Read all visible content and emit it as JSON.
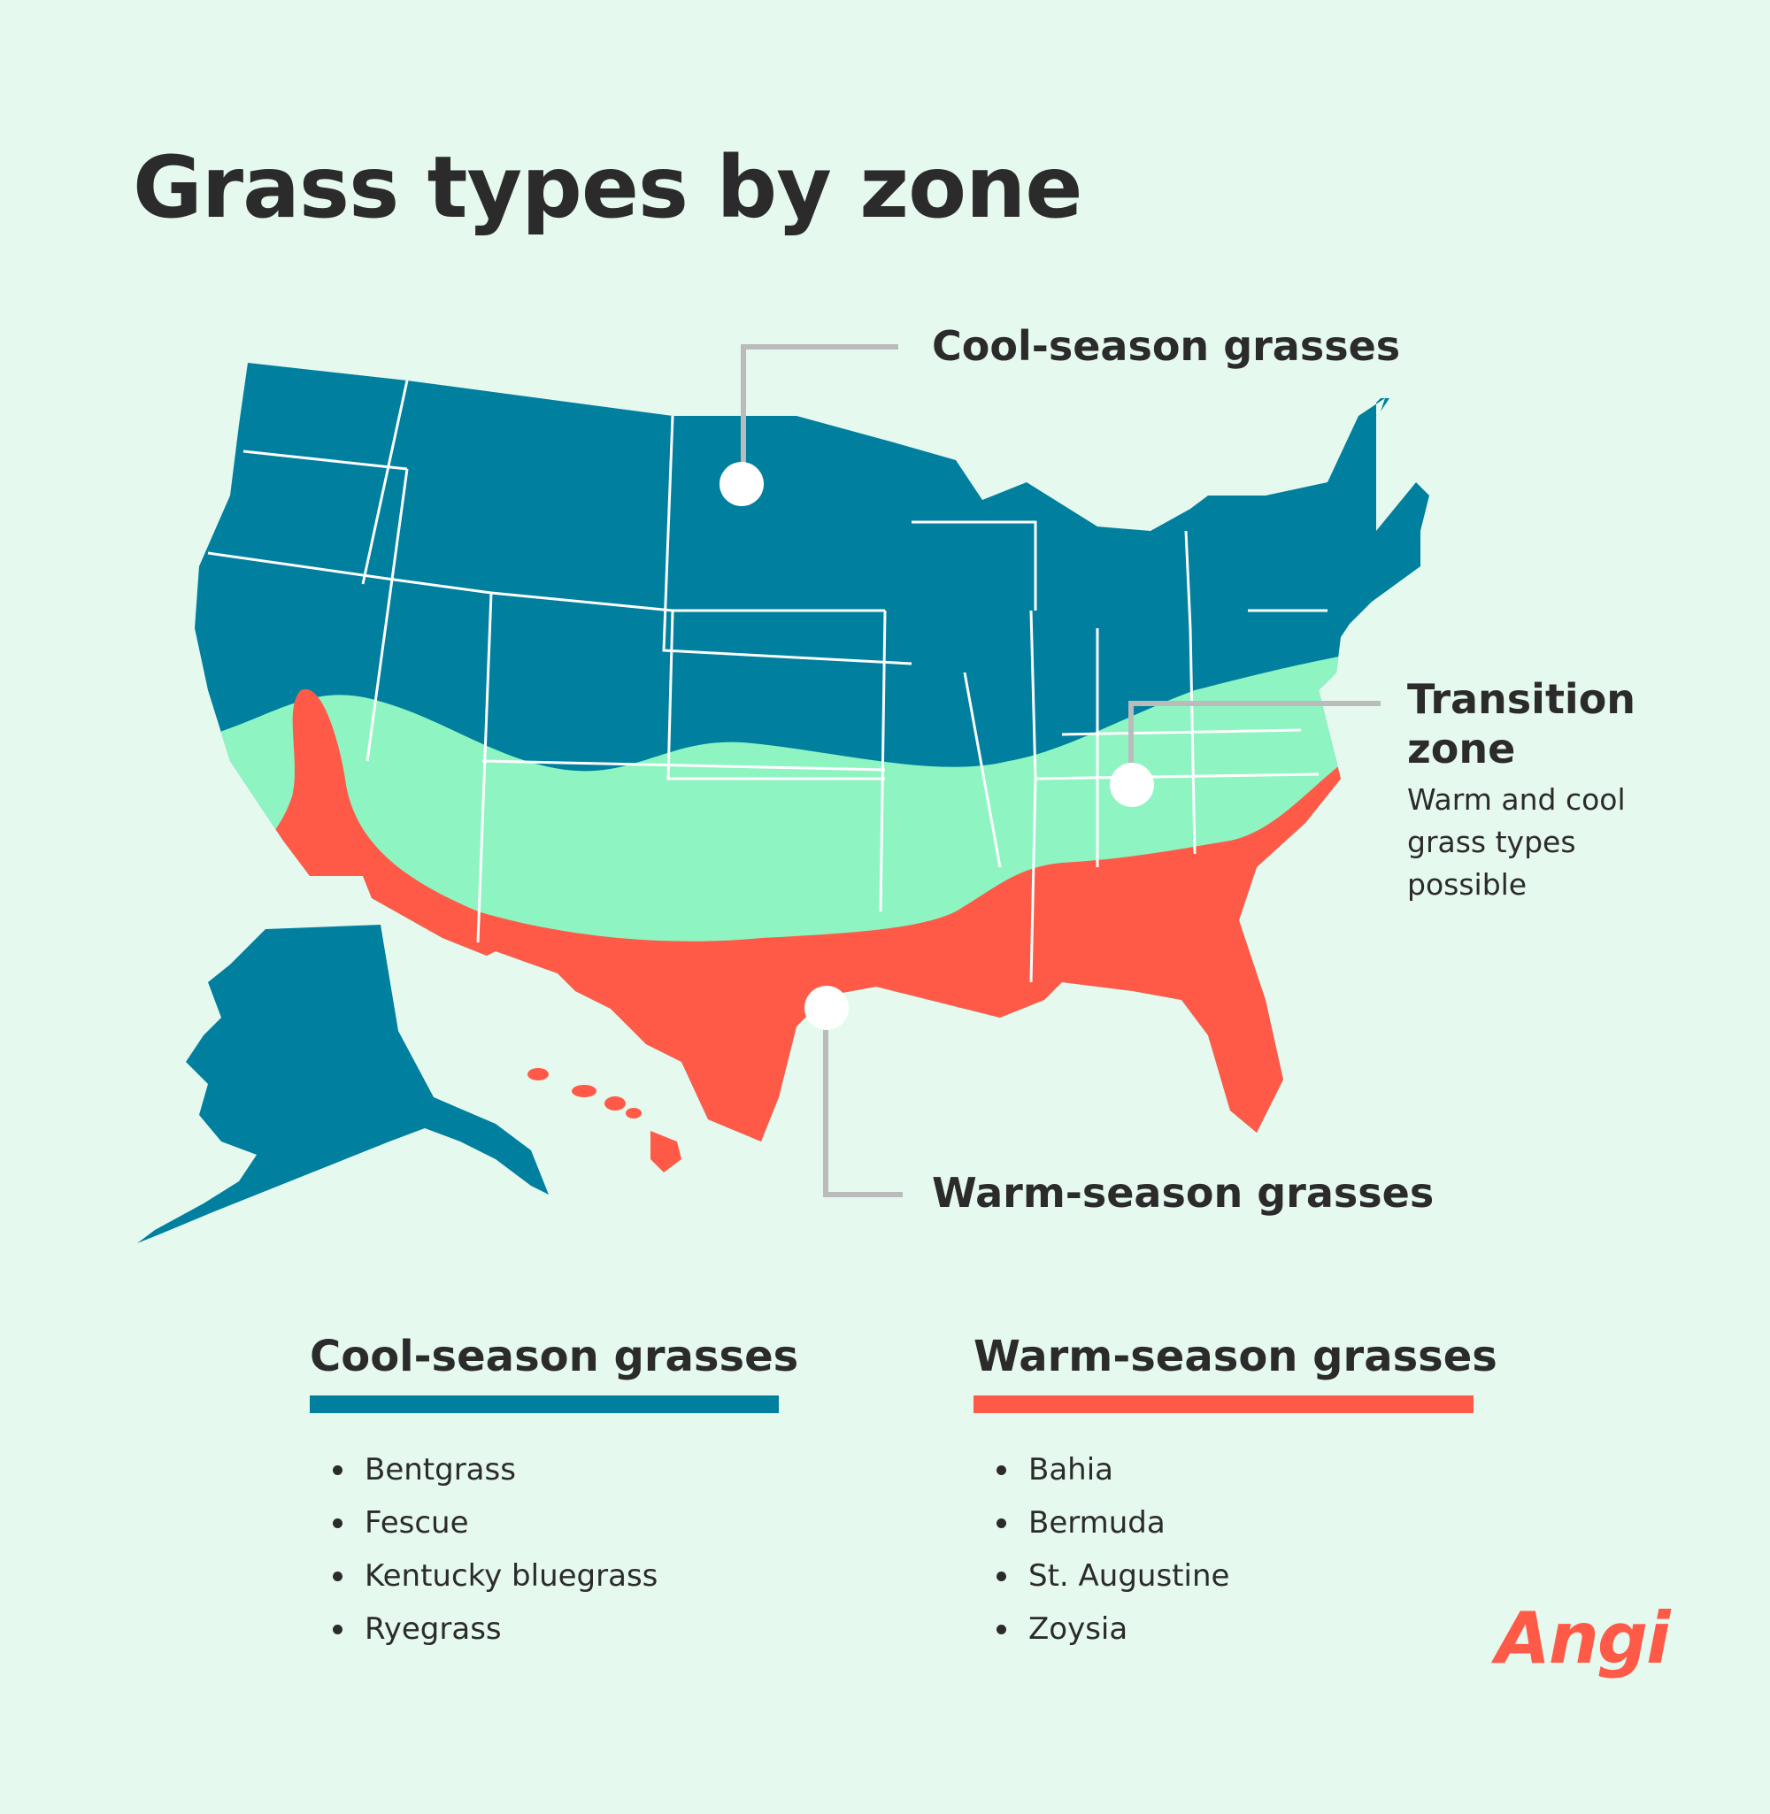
{
  "title": "Grass types by zone",
  "colors": {
    "background": "#e6f9ef",
    "cool": "#00809e",
    "transition": "#8ef5c2",
    "warm": "#ff5a47",
    "state_border": "#ffffff",
    "leader": "#bbbbbb",
    "text": "#2b2b2b",
    "brand": "#ff5a47"
  },
  "callouts": {
    "cool": {
      "label": "Cool-season grasses"
    },
    "transition": {
      "label_line1": "Transition",
      "label_line2": "zone",
      "sub_line1": "Warm and cool",
      "sub_line2": "grass types",
      "sub_line3": "possible"
    },
    "warm": {
      "label": "Warm-season grasses"
    }
  },
  "legend": {
    "cool": {
      "heading": "Cool-season grasses",
      "items": [
        "Bentgrass",
        "Fescue",
        "Kentucky bluegrass",
        "Ryegrass"
      ]
    },
    "warm": {
      "heading": "Warm-season grasses",
      "items": [
        "Bahia",
        "Bermuda",
        "St. Augustine",
        "Zoysia"
      ]
    }
  },
  "brand": "Angi"
}
